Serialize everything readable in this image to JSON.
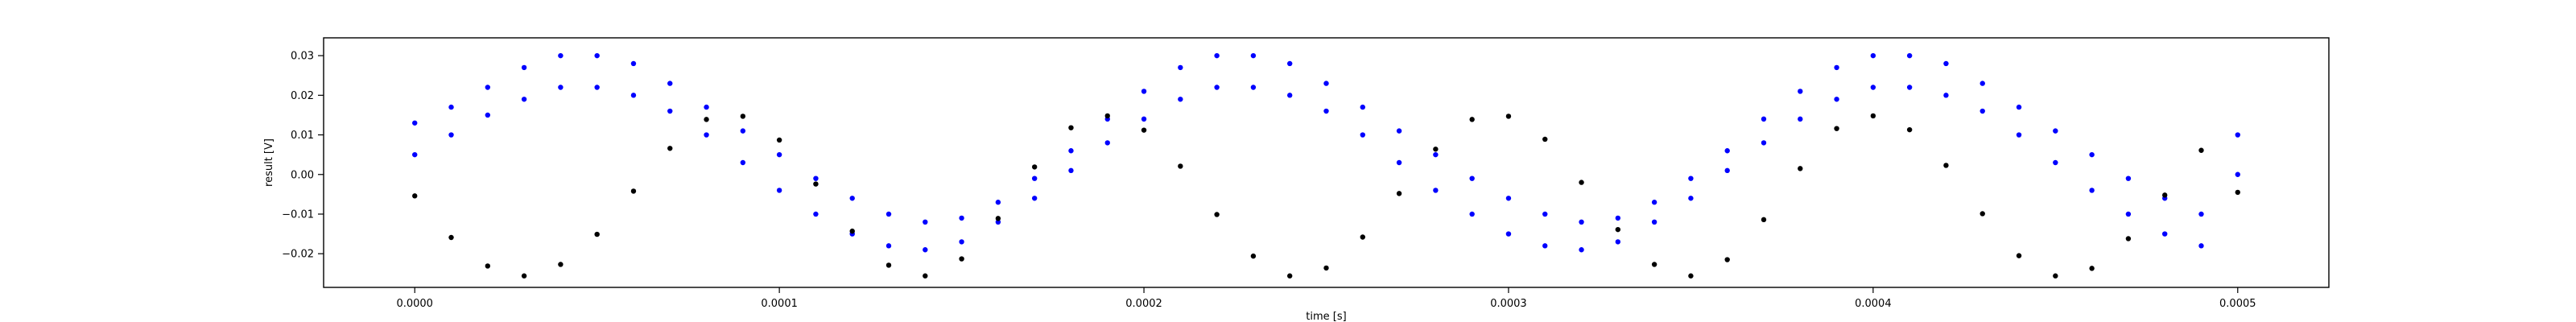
{
  "chart_data": {
    "type": "scatter",
    "title": "",
    "xlabel": "time [s]",
    "ylabel": "result [V]",
    "xlim": [
      -2.5e-05,
      0.000525
    ],
    "ylim": [
      -0.0285,
      0.0345
    ],
    "xticks": [
      0.0,
      0.0001,
      0.0002,
      0.0003,
      0.0004,
      0.0005
    ],
    "xtick_labels": [
      "0.0000",
      "0.0001",
      "0.0002",
      "0.0003",
      "0.0004",
      "0.0005"
    ],
    "yticks": [
      -0.02,
      -0.01,
      0.0,
      0.01,
      0.02,
      0.03
    ],
    "ytick_labels": [
      "−0.02",
      "−0.01",
      "0.00",
      "0.01",
      "0.02",
      "0.03"
    ],
    "grid": false,
    "legend": "none",
    "series": [
      {
        "color": "#0000ff",
        "marker": "dot",
        "x": [
          0.0,
          1e-05,
          2e-05,
          3e-05,
          4e-05,
          5e-05,
          6e-05,
          7e-05,
          8e-05,
          9e-05,
          0.0001,
          0.00011,
          0.00012,
          0.00013,
          0.00014,
          0.00015,
          0.00016,
          0.00017,
          0.00018,
          0.00019,
          0.0002,
          0.00021,
          0.00022,
          0.00023,
          0.00024,
          0.00025,
          0.00026,
          0.00027,
          0.00028,
          0.00029,
          0.0003,
          0.00031,
          0.00032,
          0.00033,
          0.00034,
          0.00035,
          0.00036,
          0.00037,
          0.00038,
          0.00039,
          0.0004,
          0.00041,
          0.00042,
          0.00043,
          0.00044,
          0.00045,
          0.00046,
          0.00047,
          0.00048,
          0.00049,
          0.0005
        ],
        "y": [
          0.013,
          0.017,
          0.022,
          0.027,
          0.03,
          0.03,
          0.028,
          0.023,
          0.017,
          0.011,
          0.005,
          -0.001,
          -0.006,
          -0.01,
          -0.012,
          -0.011,
          -0.007,
          -0.001,
          0.006,
          0.014,
          0.021,
          0.027,
          0.03,
          0.03,
          0.028,
          0.023,
          0.017,
          0.011,
          0.005,
          -0.001,
          -0.006,
          -0.01,
          -0.012,
          -0.011,
          -0.007,
          -0.001,
          0.006,
          0.014,
          0.021,
          0.027,
          0.03,
          0.03,
          0.028,
          0.023,
          0.017,
          0.011,
          0.005,
          -0.001,
          -0.006,
          -0.01,
          0.01
        ]
      },
      {
        "color": "#0000ff",
        "marker": "dot",
        "x": [
          0.0,
          1e-05,
          2e-05,
          3e-05,
          4e-05,
          5e-05,
          6e-05,
          7e-05,
          8e-05,
          9e-05,
          0.0001,
          0.00011,
          0.00012,
          0.00013,
          0.00014,
          0.00015,
          0.00016,
          0.00017,
          0.00018,
          0.00019,
          0.0002,
          0.00021,
          0.00022,
          0.00023,
          0.00024,
          0.00025,
          0.00026,
          0.00027,
          0.00028,
          0.00029,
          0.0003,
          0.00031,
          0.00032,
          0.00033,
          0.00034,
          0.00035,
          0.00036,
          0.00037,
          0.00038,
          0.00039,
          0.0004,
          0.00041,
          0.00042,
          0.00043,
          0.00044,
          0.00045,
          0.00046,
          0.00047,
          0.00048,
          0.00049,
          0.0005
        ],
        "y": [
          0.005,
          0.01,
          0.015,
          0.019,
          0.022,
          0.022,
          0.02,
          0.016,
          0.01,
          0.003,
          -0.004,
          -0.01,
          -0.015,
          -0.018,
          -0.019,
          -0.017,
          -0.012,
          -0.006,
          0.001,
          0.008,
          0.014,
          0.019,
          0.022,
          0.022,
          0.02,
          0.016,
          0.01,
          0.003,
          -0.004,
          -0.01,
          -0.015,
          -0.018,
          -0.019,
          -0.017,
          -0.012,
          -0.006,
          0.001,
          0.008,
          0.014,
          0.019,
          0.022,
          0.022,
          0.02,
          0.016,
          0.01,
          0.003,
          -0.004,
          -0.01,
          -0.015,
          -0.018,
          0.0
        ]
      },
      {
        "color": "#000000",
        "marker": "dot",
        "x": [
          0.0,
          1e-05,
          2e-05,
          3e-05,
          4e-05,
          5e-05,
          6e-05,
          7e-05,
          8e-05,
          9e-05,
          0.0001,
          0.00011,
          0.00012,
          0.00013,
          0.00014,
          0.00015,
          0.00016,
          0.00017,
          0.00018,
          0.00019,
          0.0002,
          0.00021,
          0.00022,
          0.00023,
          0.00024,
          0.00025,
          0.00026,
          0.00027,
          0.00028,
          0.00029,
          0.0003,
          0.00031,
          0.00032,
          0.00033,
          0.00034,
          0.00035,
          0.00036,
          0.00037,
          0.00038,
          0.00039,
          0.0004,
          0.00041,
          0.00042,
          0.00043,
          0.00044,
          0.00045,
          0.00046,
          0.00047,
          0.00048,
          0.00049,
          0.0005
        ],
        "y": [
          -0.0054,
          -0.0159,
          -0.0231,
          -0.0256,
          -0.0227,
          -0.0151,
          -0.0042,
          0.0066,
          0.0139,
          0.0147,
          0.0087,
          -0.0024,
          -0.0143,
          -0.0229,
          -0.0256,
          -0.0213,
          -0.0111,
          0.0019,
          0.0118,
          0.0148,
          0.0112,
          0.0021,
          -0.0101,
          -0.0206,
          -0.0256,
          -0.0236,
          -0.0158,
          -0.0048,
          0.0064,
          0.0139,
          0.0147,
          0.0089,
          -0.002,
          -0.0139,
          -0.0227,
          -0.0256,
          -0.0215,
          -0.0114,
          0.0015,
          0.0116,
          0.0148,
          0.0113,
          0.0023,
          -0.0099,
          -0.0205,
          -0.0256,
          -0.0237,
          -0.0162,
          -0.0052,
          0.0061,
          -0.0045
        ]
      }
    ]
  }
}
